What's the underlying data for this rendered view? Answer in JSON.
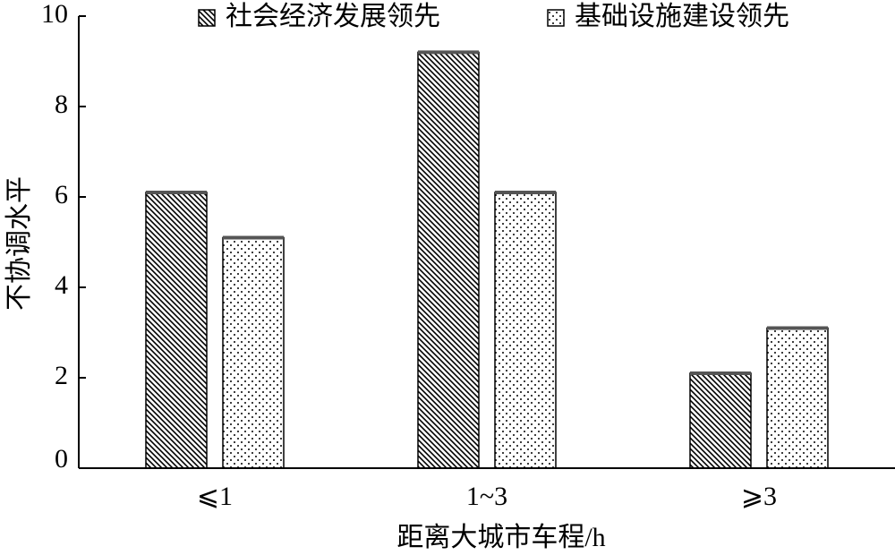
{
  "chart_data": {
    "type": "bar",
    "categories": [
      "⩽1",
      "1~3",
      "⩾3"
    ],
    "series": [
      {
        "name": "社会经济发展领先",
        "color": "#000000",
        "pattern": "hatch",
        "values": [
          6.1,
          9.2,
          2.1
        ]
      },
      {
        "name": "基础设施建设领先",
        "color": "#000000",
        "pattern": "dots",
        "values": [
          5.1,
          6.1,
          3.1
        ]
      }
    ],
    "ylim": [
      0,
      10
    ],
    "yticks": [
      0,
      2,
      4,
      6,
      8,
      10
    ],
    "xlabel": "距离大城市车程/h",
    "ylabel": "不协调水平",
    "legend": "top"
  }
}
